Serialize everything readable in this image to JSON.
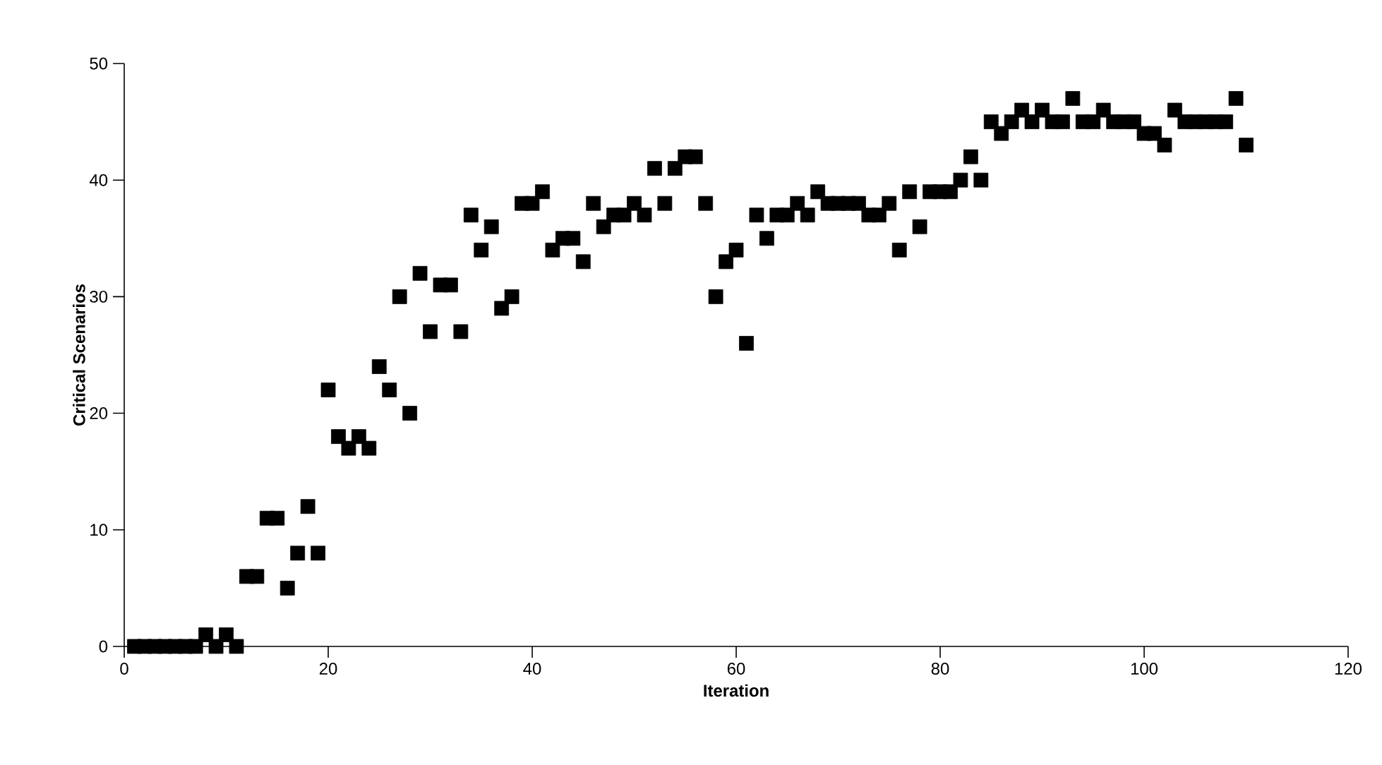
{
  "chart_data": {
    "type": "scatter",
    "xlabel": "Iteration",
    "ylabel": "Critical Scenarios",
    "x": [
      1,
      2,
      3,
      4,
      5,
      6,
      7,
      8,
      9,
      10,
      11,
      12,
      13,
      14,
      15,
      16,
      17,
      18,
      19,
      20,
      21,
      22,
      23,
      24,
      25,
      26,
      27,
      28,
      29,
      30,
      31,
      32,
      33,
      34,
      35,
      36,
      37,
      38,
      39,
      40,
      41,
      42,
      43,
      44,
      45,
      46,
      47,
      48,
      49,
      50,
      51,
      52,
      53,
      54,
      55,
      56,
      57,
      58,
      59,
      60,
      61,
      62,
      63,
      64,
      65,
      66,
      67,
      68,
      69,
      70,
      71,
      72,
      73,
      74,
      75,
      76,
      77,
      78,
      79,
      80,
      81,
      82,
      83,
      84,
      85,
      86,
      87,
      88,
      89,
      90,
      91,
      92,
      93,
      94,
      95,
      96,
      97,
      98,
      99,
      100,
      101,
      102,
      103,
      104,
      105,
      106,
      107,
      108,
      109,
      110
    ],
    "values": [
      0,
      0,
      0,
      0,
      0,
      0,
      0,
      1,
      0,
      1,
      0,
      6,
      6,
      11,
      11,
      5,
      8,
      12,
      8,
      22,
      18,
      17,
      18,
      17,
      24,
      22,
      30,
      20,
      32,
      27,
      31,
      31,
      27,
      37,
      34,
      36,
      29,
      30,
      38,
      38,
      39,
      34,
      35,
      35,
      33,
      38,
      36,
      37,
      37,
      38,
      37,
      41,
      38,
      41,
      42,
      42,
      38,
      30,
      33,
      34,
      26,
      37,
      35,
      37,
      37,
      38,
      37,
      39,
      38,
      38,
      38,
      38,
      37,
      37,
      38,
      34,
      39,
      36,
      39,
      39,
      39,
      40,
      42,
      40,
      45,
      44,
      45,
      46,
      45,
      46,
      45,
      45,
      47,
      45,
      45,
      46,
      45,
      45,
      45,
      44,
      44,
      43,
      46,
      45,
      45,
      45,
      45,
      45,
      47,
      43
    ],
    "color": "#000000",
    "marker": "square",
    "grid": false,
    "xlim": [
      0,
      120
    ],
    "xticks": [
      0,
      20,
      40,
      60,
      80,
      100,
      120
    ],
    "ylim": [
      0,
      50
    ],
    "yticks": [
      0,
      10,
      20,
      30,
      40,
      50
    ]
  }
}
